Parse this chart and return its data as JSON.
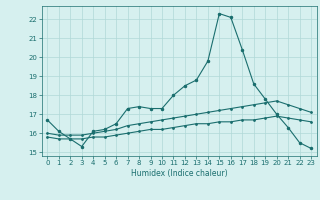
{
  "xlabel": "Humidex (Indice chaleur)",
  "ylabel": "",
  "bg_color": "#d6f0ef",
  "grid_color": "#b0d8d8",
  "line_color": "#1a6e6e",
  "xlim": [
    -0.5,
    23.5
  ],
  "ylim": [
    14.8,
    22.7
  ],
  "yticks": [
    15,
    16,
    17,
    18,
    19,
    20,
    21,
    22
  ],
  "xticks": [
    0,
    1,
    2,
    3,
    4,
    5,
    6,
    7,
    8,
    9,
    10,
    11,
    12,
    13,
    14,
    15,
    16,
    17,
    18,
    19,
    20,
    21,
    22,
    23
  ],
  "line1_x": [
    0,
    1,
    2,
    3,
    4,
    5,
    6,
    7,
    8,
    9,
    10,
    11,
    12,
    13,
    14,
    15,
    16,
    17,
    18,
    19,
    20,
    21,
    22,
    23
  ],
  "line1_y": [
    16.7,
    16.1,
    15.7,
    15.3,
    16.1,
    16.2,
    16.5,
    17.3,
    17.4,
    17.3,
    17.3,
    18.0,
    18.5,
    18.8,
    19.8,
    22.3,
    22.1,
    20.4,
    18.6,
    17.8,
    17.0,
    16.3,
    15.5,
    15.2
  ],
  "line2_x": [
    0,
    1,
    2,
    3,
    4,
    5,
    6,
    7,
    8,
    9,
    10,
    11,
    12,
    13,
    14,
    15,
    16,
    17,
    18,
    19,
    20,
    21,
    22,
    23
  ],
  "line2_y": [
    16.0,
    15.9,
    15.9,
    15.9,
    16.0,
    16.1,
    16.2,
    16.4,
    16.5,
    16.6,
    16.7,
    16.8,
    16.9,
    17.0,
    17.1,
    17.2,
    17.3,
    17.4,
    17.5,
    17.6,
    17.7,
    17.5,
    17.3,
    17.1
  ],
  "line3_x": [
    0,
    1,
    2,
    3,
    4,
    5,
    6,
    7,
    8,
    9,
    10,
    11,
    12,
    13,
    14,
    15,
    16,
    17,
    18,
    19,
    20,
    21,
    22,
    23
  ],
  "line3_y": [
    15.8,
    15.7,
    15.7,
    15.7,
    15.8,
    15.8,
    15.9,
    16.0,
    16.1,
    16.2,
    16.2,
    16.3,
    16.4,
    16.5,
    16.5,
    16.6,
    16.6,
    16.7,
    16.7,
    16.8,
    16.9,
    16.8,
    16.7,
    16.6
  ]
}
